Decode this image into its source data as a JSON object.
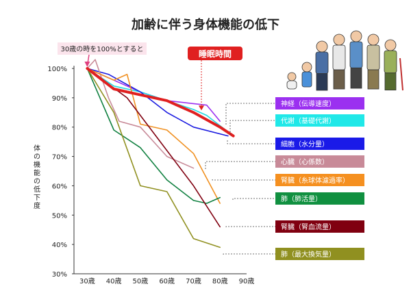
{
  "chart_data": {
    "type": "line",
    "title": "加齢に伴う身体機能の低下",
    "ylabel": "体の機能の低下度",
    "y_ticks": [
      "100%",
      "90%",
      "80%",
      "70%",
      "60%",
      "50%",
      "40%",
      "30%"
    ],
    "x_ticks": [
      "30歳",
      "40歳",
      "50歳",
      "60歳",
      "70歳",
      "80歳",
      "90歳"
    ],
    "xlim": [
      25,
      90
    ],
    "ylim": [
      30,
      100
    ],
    "annotation": "30歳の時を100%とすると",
    "highlight_label": "睡眠時間",
    "highlight_color": "#e02020",
    "series": [
      {
        "name": "神経（伝導速度）",
        "color": "#9b30f0",
        "values": [
          [
            30,
            100
          ],
          [
            40,
            96
          ],
          [
            50,
            92
          ],
          [
            60,
            89
          ],
          [
            70,
            88
          ],
          [
            75,
            87.5
          ],
          [
            80,
            82
          ]
        ]
      },
      {
        "name": "代謝（基礎代謝）",
        "color": "#20d8e0",
        "values": [
          [
            30,
            100
          ],
          [
            40,
            94
          ],
          [
            50,
            92
          ],
          [
            60,
            89
          ],
          [
            70,
            86
          ],
          [
            75,
            84
          ],
          [
            85,
            77
          ]
        ]
      },
      {
        "name": "細胞（水分量）",
        "color": "#1a1ae0",
        "values": [
          [
            30,
            100
          ],
          [
            38,
            98
          ],
          [
            50,
            92
          ],
          [
            60,
            85
          ],
          [
            70,
            80
          ],
          [
            83,
            77
          ]
        ]
      },
      {
        "name": "心臓（心係数）",
        "color": "#c88a98",
        "values": [
          [
            30,
            100
          ],
          [
            33,
            103
          ],
          [
            38,
            90
          ],
          [
            42,
            82
          ],
          [
            50,
            80
          ],
          [
            55,
            75
          ],
          [
            60,
            70
          ],
          [
            70,
            66
          ]
        ]
      },
      {
        "name": "腎臓（糸球体濾過率）",
        "color": "#f09020",
        "values": [
          [
            30,
            100
          ],
          [
            40,
            96
          ],
          [
            45,
            98
          ],
          [
            50,
            81
          ],
          [
            60,
            79
          ],
          [
            70,
            71
          ],
          [
            80,
            54
          ]
        ]
      },
      {
        "name": "肺（肺活量）",
        "color": "#108040",
        "values": [
          [
            30,
            100
          ],
          [
            40,
            79
          ],
          [
            50,
            73
          ],
          [
            60,
            62
          ],
          [
            70,
            55
          ],
          [
            75,
            54
          ],
          [
            80,
            56
          ]
        ]
      },
      {
        "name": "腎臓（腎血流量）",
        "color": "#800010",
        "values": [
          [
            30,
            100
          ],
          [
            45,
            90
          ],
          [
            50,
            84
          ],
          [
            60,
            72
          ],
          [
            70,
            60
          ],
          [
            80,
            46
          ]
        ]
      },
      {
        "name": "肺（最大換気量）",
        "color": "#909020",
        "values": [
          [
            30,
            100
          ],
          [
            40,
            85
          ],
          [
            50,
            60
          ],
          [
            60,
            58
          ],
          [
            70,
            42
          ],
          [
            80,
            39
          ]
        ]
      },
      {
        "name": "睡眠時間",
        "color": "#e02020",
        "values": [
          [
            30,
            100
          ],
          [
            40,
            93
          ],
          [
            50,
            91
          ],
          [
            60,
            89
          ],
          [
            70,
            85
          ],
          [
            80,
            80
          ],
          [
            85,
            77
          ]
        ]
      }
    ],
    "legend": [
      {
        "label": "神経（伝導速度）",
        "color": "#9b30f0"
      },
      {
        "label": "代謝（基礎代謝）",
        "color": "#20e8e8"
      },
      {
        "label": "細胞（水分量）",
        "color": "#1a1ae8"
      },
      {
        "label": "心臓（心係数）",
        "color": "#c88a98"
      },
      {
        "label": "腎臓（糸球体濾過率）",
        "color": "#f59020"
      },
      {
        "label": "肺（肺活量）",
        "color": "#109040"
      },
      {
        "label": "腎臓（腎血流量）",
        "color": "#800010"
      },
      {
        "label": "肺（最大換気量）",
        "color": "#909020"
      }
    ]
  }
}
